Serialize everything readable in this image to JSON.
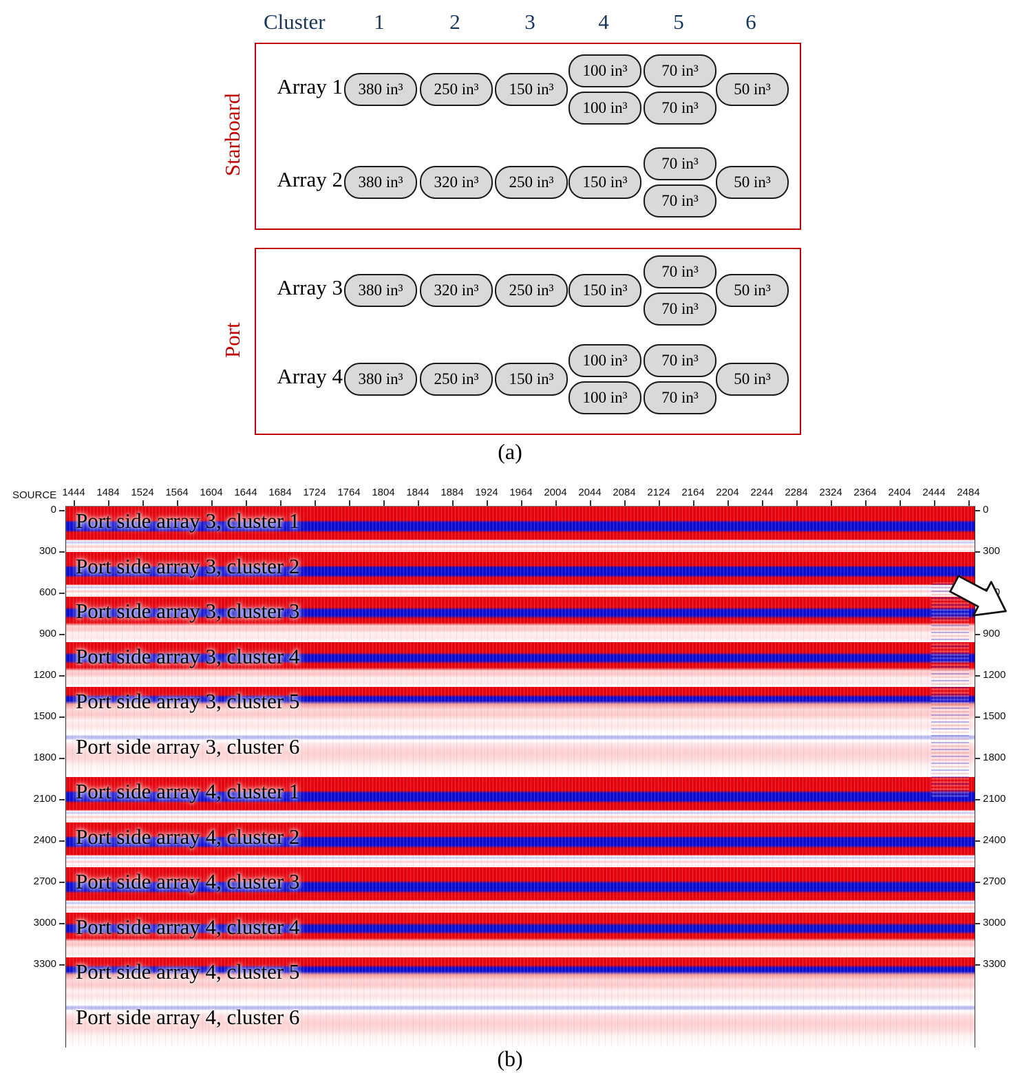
{
  "figure": {
    "caption_a": "(a)",
    "caption_b": "(b)"
  },
  "diagram": {
    "cluster_header": "Cluster",
    "cluster_numbers": [
      "1",
      "2",
      "3",
      "4",
      "5",
      "6"
    ],
    "groups": [
      {
        "label": "Starboard",
        "arrays": [
          {
            "label": "Array 1",
            "clusters": [
              [
                "380 in³"
              ],
              [
                "250 in³"
              ],
              [
                "150 in³"
              ],
              [
                "100 in³",
                "100 in³"
              ],
              [
                "70 in³",
                "70 in³"
              ],
              [
                "50 in³"
              ]
            ]
          },
          {
            "label": "Array 2",
            "clusters": [
              [
                "380 in³"
              ],
              [
                "320 in³"
              ],
              [
                "250 in³"
              ],
              [
                "150 in³"
              ],
              [
                "70 in³",
                "70 in³"
              ],
              [
                "50 in³"
              ]
            ]
          }
        ]
      },
      {
        "label": "Port",
        "arrays": [
          {
            "label": "Array 3",
            "clusters": [
              [
                "380 in³"
              ],
              [
                "320 in³"
              ],
              [
                "250 in³"
              ],
              [
                "150 in³"
              ],
              [
                "70 in³",
                "70 in³"
              ],
              [
                "50 in³"
              ]
            ]
          },
          {
            "label": "Array 4",
            "clusters": [
              [
                "380 in³"
              ],
              [
                "250 in³"
              ],
              [
                "150 in³"
              ],
              [
                "100 in³",
                "100 in³"
              ],
              [
                "70 in³",
                "70 in³"
              ],
              [
                "50 in³"
              ]
            ]
          }
        ]
      }
    ],
    "colors": {
      "box_border": "#c00000",
      "header_text": "#17365d",
      "pill_fill": "#d9d9d9"
    }
  },
  "seismic": {
    "source_axis_label": "SOURCE",
    "source_ticks": [
      "1444",
      "1484",
      "1524",
      "1564",
      "1604",
      "1644",
      "1684",
      "1724",
      "1764",
      "1804",
      "1844",
      "1884",
      "1924",
      "1964",
      "2004",
      "2044",
      "2084",
      "2124",
      "2164",
      "2204",
      "2244",
      "2284",
      "2324",
      "2364",
      "2404",
      "2444",
      "2484"
    ],
    "depth_ticks": [
      "0",
      "300",
      "600",
      "900",
      "1200",
      "1500",
      "1800",
      "2100",
      "2400",
      "2700",
      "3000",
      "3300"
    ],
    "bands": [
      {
        "label": "Port side array 3, cluster 1",
        "intensity": "strong"
      },
      {
        "label": "Port side array 3, cluster 2",
        "intensity": "strong"
      },
      {
        "label": "Port side array 3, cluster 3",
        "intensity": "medium"
      },
      {
        "label": "Port side array 3, cluster 4",
        "intensity": "medium"
      },
      {
        "label": "Port side array 3, cluster 5",
        "intensity": "soft"
      },
      {
        "label": "Port side array 3, cluster 6",
        "intensity": "light"
      },
      {
        "label": "Port side array 4, cluster 1",
        "intensity": "strong"
      },
      {
        "label": "Port side array 4, cluster 2",
        "intensity": "strong"
      },
      {
        "label": "Port side array 4, cluster 3",
        "intensity": "strong"
      },
      {
        "label": "Port side array 4, cluster 4",
        "intensity": "medium"
      },
      {
        "label": "Port side array 4, cluster 5",
        "intensity": "soft"
      },
      {
        "label": "Port side array 4, cluster 6",
        "intensity": "light"
      }
    ],
    "colors": {
      "peak_red": "#e8040c",
      "trough_blue": "#0d0dd0"
    }
  }
}
